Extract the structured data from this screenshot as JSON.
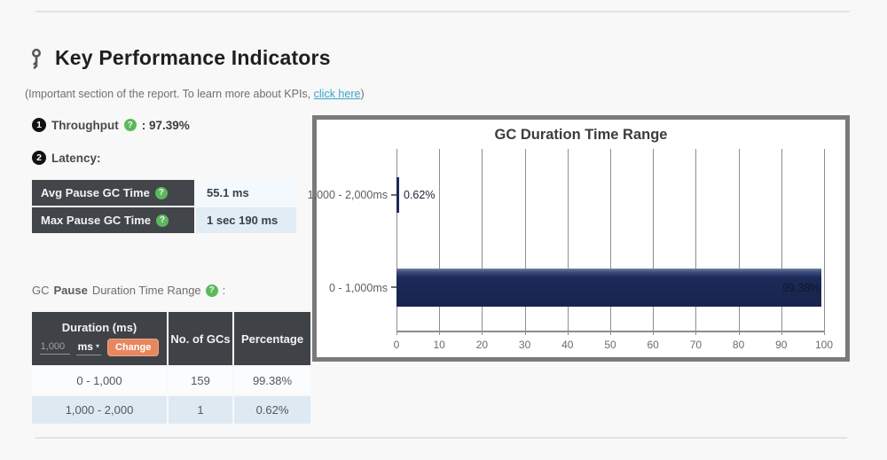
{
  "header": {
    "title": "Key Performance Indicators",
    "subtitle_prefix": "(Important section of the report. To learn more about KPIs, ",
    "subtitle_link": "click here",
    "subtitle_suffix": ")"
  },
  "kpi": {
    "throughput": {
      "index": "1",
      "label": "Throughput",
      "help_icon": "?",
      "value_text": ": 97.39%"
    },
    "latency": {
      "index": "2",
      "label": "Latency:"
    }
  },
  "latency_table": {
    "rows": [
      {
        "label": "Avg Pause GC Time",
        "help_icon": "?",
        "value": "55.1 ms"
      },
      {
        "label": "Max Pause GC Time",
        "help_icon": "?",
        "value": "1 sec 190 ms"
      }
    ]
  },
  "duration_section": {
    "label_prefix": "GC ",
    "label_bold": "Pause",
    "label_suffix": " Duration Time Range",
    "help_icon": "?",
    "colon": ":"
  },
  "duration_table": {
    "headers": {
      "col1": "Duration (ms)",
      "col2": "No. of GCs",
      "col3": "Percentage"
    },
    "controls": {
      "input_value": "1,000",
      "unit_value": "ms",
      "unit_caret": "▾",
      "change_label": "Change"
    },
    "rows": [
      {
        "range": "0 - 1,000",
        "count": "159",
        "percentage": "99.38%"
      },
      {
        "range": "1,000 - 2,000",
        "count": "1",
        "percentage": "0.62%"
      }
    ]
  },
  "chart_data": {
    "type": "bar",
    "orientation": "horizontal",
    "title": "GC Duration Time Range",
    "categories": [
      "1,000 - 2,000ms",
      "0 - 1,000ms"
    ],
    "values": [
      0.62,
      99.38
    ],
    "value_labels": [
      "0.62%",
      "99.38%"
    ],
    "xlabel": "",
    "ylabel": "",
    "xlim": [
      0,
      100
    ],
    "x_ticks": [
      "0",
      "10",
      "20",
      "30",
      "40",
      "50",
      "60",
      "70",
      "80",
      "90",
      "100"
    ],
    "grid": "vertical",
    "legend": "none",
    "bar_color": "#1b2a57"
  },
  "colors": {
    "accent_orange": "#e8875f",
    "help_green": "#5cb85c",
    "link_blue": "#37a5c9",
    "table_header_dark": "#42464a",
    "bar_navy": "#1b2a57",
    "chart_border": "#7a7a7a"
  }
}
